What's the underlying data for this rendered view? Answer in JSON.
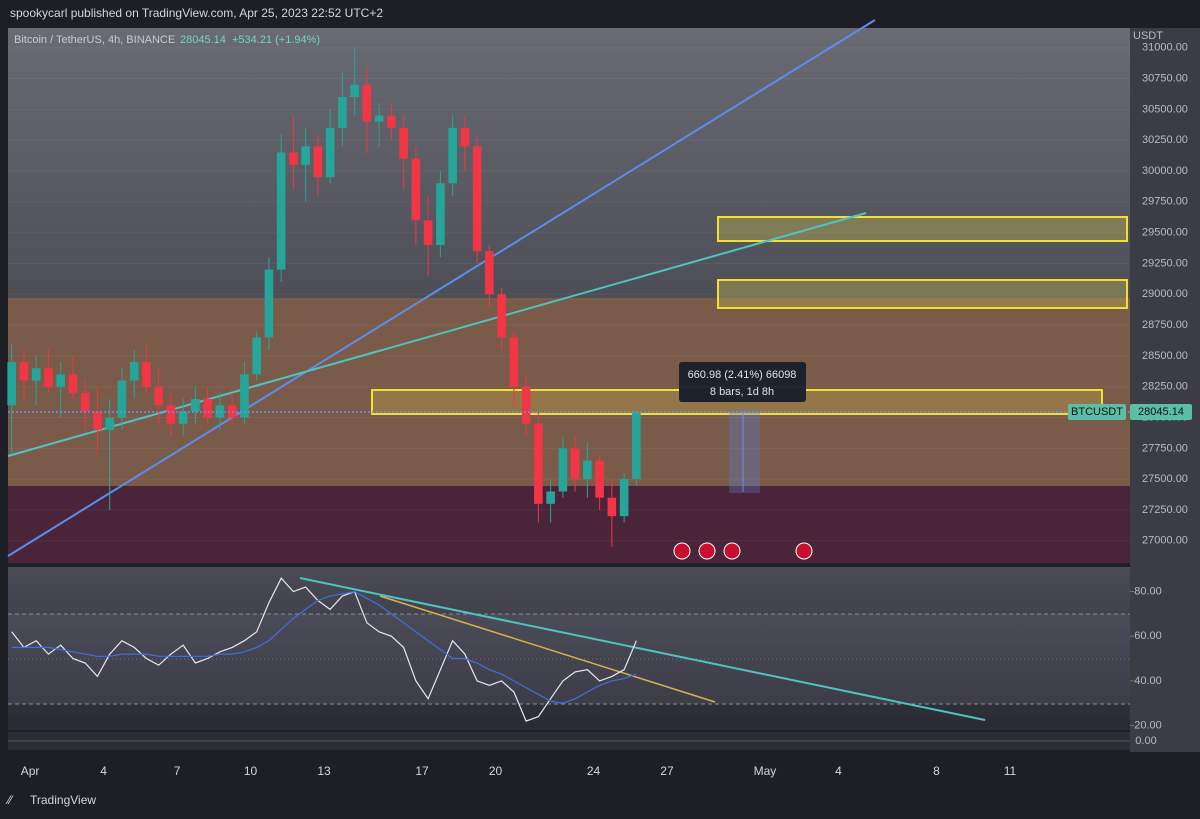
{
  "header": "spookycarl published on TradingView.com, Apr 25, 2023 22:52 UTC+2",
  "footer": "TradingView",
  "measure": {
    "line1": "660.98 (2.41%) 66098",
    "line2": "8 bars, 1d 8h"
  },
  "chart_data": [
    {
      "type": "candlestick",
      "title": "Bitcoin / TetherUS, 4h, BINANCE",
      "last_price": 28045.14,
      "change": "+534.21 (+1.94%)",
      "symbol": "BTCUSDT",
      "currency": "USDT",
      "colors": {
        "up": "#26a69a",
        "down": "#f23645"
      },
      "xlim": [
        0.1,
        45.9
      ],
      "xticks": [
        {
          "value": 1,
          "label": "Apr"
        },
        4,
        7,
        10,
        13,
        17,
        20,
        24,
        27,
        {
          "value": 31,
          "label": "May"
        },
        {
          "value": 34,
          "label": "4"
        },
        {
          "value": 38,
          "label": "8"
        },
        {
          "value": 41,
          "label": "11"
        }
      ],
      "ylim": [
        26820,
        31160
      ],
      "yticks": [
        {
          "value": 27000,
          "label": "27000.00"
        },
        {
          "value": 27250,
          "label": "27250.00"
        },
        {
          "value": 27500,
          "label": "27500.00"
        },
        {
          "value": 27750,
          "label": "27750.00"
        },
        {
          "value": 28000,
          "label": "28000.00"
        },
        {
          "value": 28250,
          "label": "28250.00"
        },
        {
          "value": 28500,
          "label": "28500.00"
        },
        {
          "value": 28750,
          "label": "28750.00"
        },
        {
          "value": 29000,
          "label": "29000.00"
        },
        {
          "value": 29250,
          "label": "29250.00"
        },
        {
          "value": 29500,
          "label": "29500.00"
        },
        {
          "value": 29750,
          "label": "29750.00"
        },
        {
          "value": 30000,
          "label": "30000.00"
        },
        {
          "value": 30250,
          "label": "30250.00"
        },
        {
          "value": 30500,
          "label": "30500.00"
        },
        {
          "value": 30750,
          "label": "30750.00"
        },
        {
          "value": 31000,
          "label": "31000.00"
        }
      ],
      "x": [
        0.25,
        0.75,
        1.25,
        1.75,
        2.25,
        2.75,
        3.25,
        3.75,
        4.25,
        4.75,
        5.25,
        5.75,
        6.25,
        6.75,
        7.25,
        7.75,
        8.25,
        8.75,
        9.25,
        9.75,
        10.25,
        10.75,
        11.25,
        11.75,
        12.25,
        12.75,
        13.25,
        13.75,
        14.25,
        14.75,
        15.25,
        15.75,
        16.25,
        16.75,
        17.25,
        17.75,
        18.25,
        18.75,
        19.25,
        19.75,
        20.25,
        20.75,
        21.25,
        21.75,
        22.25,
        22.75,
        23.25,
        23.75,
        24.25,
        24.75,
        25.25,
        25.75
      ],
      "open": [
        28100,
        28450,
        28300,
        28400,
        28250,
        28350,
        28200,
        28050,
        27900,
        28000,
        28300,
        28450,
        28250,
        28100,
        27950,
        28050,
        28150,
        28000,
        28100,
        28000,
        28350,
        28650,
        29200,
        30150,
        30050,
        30200,
        29950,
        30350,
        30600,
        30700,
        30400,
        30450,
        30350,
        30100,
        29600,
        29400,
        29900,
        30350,
        30200,
        29350,
        29000,
        28650,
        28250,
        27950,
        27300,
        27400,
        27750,
        27500,
        27650,
        27350,
        27200,
        27500
      ],
      "high": [
        28600,
        28550,
        28500,
        28550,
        28450,
        28500,
        28300,
        28250,
        28150,
        28400,
        28550,
        28600,
        28400,
        28200,
        28150,
        28250,
        28250,
        28200,
        28200,
        28450,
        28700,
        29300,
        30300,
        30450,
        30350,
        30300,
        30500,
        30800,
        31000,
        30850,
        30550,
        30550,
        30450,
        30200,
        29800,
        30000,
        30450,
        30450,
        30300,
        29400,
        29050,
        28700,
        28350,
        28050,
        27500,
        27850,
        27850,
        27800,
        27700,
        27500,
        27550,
        28060
      ],
      "low": [
        27700,
        28150,
        28100,
        28200,
        28000,
        28150,
        27900,
        27700,
        27250,
        27900,
        28150,
        28200,
        27950,
        27850,
        27850,
        27950,
        27950,
        27900,
        27950,
        27950,
        28300,
        28550,
        29100,
        29850,
        29750,
        29800,
        29900,
        30200,
        30450,
        30150,
        30200,
        30250,
        29850,
        29400,
        29150,
        29300,
        29800,
        30000,
        29250,
        28900,
        28550,
        28100,
        27850,
        27150,
        27150,
        27350,
        27400,
        27350,
        27250,
        26950,
        27150,
        27450
      ],
      "close": [
        28450,
        28300,
        28400,
        28250,
        28350,
        28200,
        28050,
        27900,
        28000,
        28300,
        28450,
        28250,
        28100,
        27950,
        28050,
        28150,
        28000,
        28100,
        28000,
        28350,
        28650,
        29200,
        30150,
        30050,
        30200,
        29950,
        30350,
        30600,
        30700,
        30400,
        30450,
        30350,
        30100,
        29600,
        29400,
        29900,
        30350,
        30200,
        29350,
        29000,
        28650,
        28250,
        27950,
        27300,
        27400,
        27750,
        27500,
        27650,
        27350,
        27200,
        27500,
        28045
      ]
    },
    {
      "type": "line",
      "xlim": [
        0.1,
        45.9
      ],
      "ylim": [
        18,
        91
      ],
      "yticks": [
        {
          "value": 80,
          "label": "80.00"
        },
        {
          "value": 60,
          "label": "60.00"
        },
        {
          "value": 40,
          "label": "40.00"
        },
        {
          "value": 20,
          "label": "20.00"
        }
      ],
      "x": [
        0.25,
        0.75,
        1.25,
        1.75,
        2.25,
        2.75,
        3.25,
        3.75,
        4.25,
        4.75,
        5.25,
        5.75,
        6.25,
        6.75,
        7.25,
        7.75,
        8.25,
        8.75,
        9.25,
        9.75,
        10.25,
        10.75,
        11.25,
        11.75,
        12.25,
        12.75,
        13.25,
        13.75,
        14.25,
        14.75,
        15.25,
        15.75,
        16.25,
        16.75,
        17.25,
        17.75,
        18.25,
        18.75,
        19.25,
        19.75,
        20.25,
        20.75,
        21.25,
        21.75,
        22.25,
        22.75,
        23.25,
        23.75,
        24.25,
        24.75,
        25.25,
        25.75
      ],
      "series": [
        {
          "color": "#e8e8ec",
          "values": [
            62,
            55,
            58,
            52,
            56,
            50,
            48,
            42,
            52,
            58,
            55,
            50,
            47,
            52,
            56,
            48,
            50,
            53,
            55,
            58,
            62,
            75,
            86,
            80,
            82,
            76,
            72,
            78,
            80,
            66,
            62,
            60,
            55,
            40,
            32,
            45,
            58,
            52,
            40,
            38,
            40,
            35,
            22,
            24,
            32,
            40,
            44,
            45,
            40,
            42,
            45,
            58
          ]
        },
        {
          "color": "#3d6fe0",
          "values": [
            55,
            55,
            55,
            55,
            54,
            53,
            52,
            51,
            51,
            52,
            52,
            52,
            51,
            51,
            51,
            51,
            51,
            52,
            52,
            53,
            55,
            58,
            63,
            68,
            72,
            76,
            78,
            79,
            80,
            77,
            74,
            70,
            66,
            62,
            58,
            54,
            50,
            50,
            48,
            45,
            43,
            40,
            37,
            34,
            31,
            30,
            32,
            35,
            38,
            40,
            41,
            43
          ]
        }
      ],
      "macd_zero": {
        "value": 0,
        "label": "0.00"
      }
    }
  ]
}
